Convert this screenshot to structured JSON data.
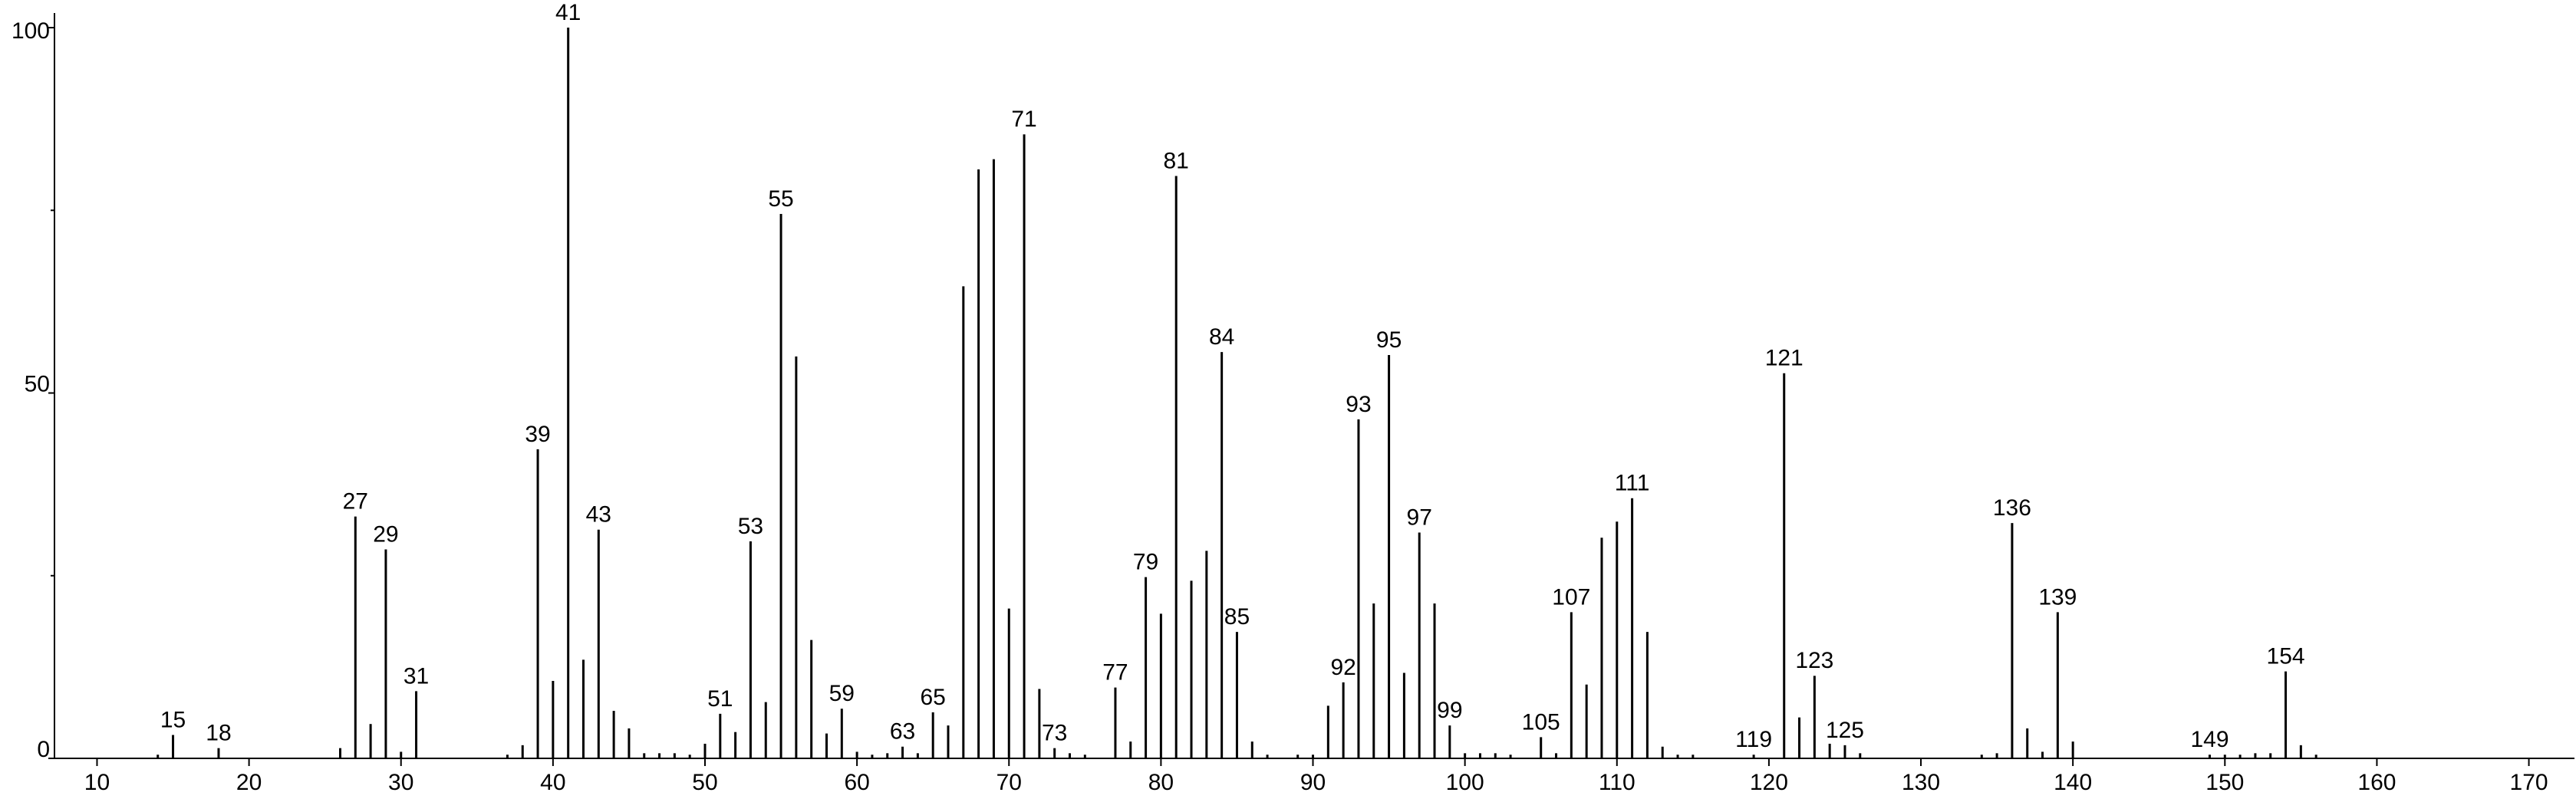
{
  "chart_data": {
    "type": "stick",
    "x": [
      14,
      15,
      18,
      26,
      27,
      28,
      29,
      30,
      31,
      37,
      38,
      39,
      40,
      41,
      42,
      43,
      44,
      45,
      46,
      47,
      48,
      49,
      50,
      51,
      52,
      53,
      54,
      55,
      56,
      57,
      58,
      59,
      60,
      61,
      62,
      63,
      64,
      65,
      66,
      67,
      68,
      69,
      70,
      71,
      72,
      73,
      74,
      75,
      77,
      78,
      79,
      80,
      81,
      82,
      83,
      84,
      85,
      86,
      87,
      89,
      90,
      91,
      92,
      93,
      94,
      95,
      96,
      97,
      98,
      99,
      100,
      101,
      102,
      103,
      105,
      106,
      107,
      108,
      109,
      110,
      111,
      112,
      113,
      114,
      115,
      119,
      121,
      122,
      123,
      124,
      125,
      126,
      134,
      135,
      136,
      137,
      138,
      139,
      140,
      149,
      150,
      151,
      152,
      153,
      154,
      155,
      156
    ],
    "values": [
      0.5,
      3.2,
      1.4,
      1.4,
      33.1,
      4.7,
      28.6,
      0.9,
      9.2,
      0.5,
      1.8,
      42.3,
      10.6,
      100,
      13.5,
      31.3,
      6.5,
      4.1,
      0.7,
      0.7,
      0.7,
      0.5,
      2.0,
      6.1,
      3.6,
      29.7,
      7.7,
      74.5,
      55.0,
      16.2,
      3.4,
      6.8,
      0.9,
      0.5,
      0.7,
      1.6,
      0.7,
      6.3,
      4.5,
      64.6,
      80.6,
      82.0,
      20.5,
      85.4,
      9.5,
      1.4,
      0.7,
      0.5,
      9.7,
      2.3,
      24.8,
      19.8,
      79.7,
      24.3,
      28.4,
      55.6,
      17.3,
      2.3,
      0.5,
      0.5,
      0.5,
      7.2,
      10.4,
      46.4,
      21.2,
      55.2,
      11.7,
      30.9,
      21.2,
      4.5,
      0.7,
      0.7,
      0.7,
      0.5,
      2.9,
      0.7,
      20.0,
      10.1,
      30.2,
      32.4,
      35.6,
      17.3,
      1.6,
      0.5,
      0.5,
      0.5,
      52.7,
      5.6,
      11.3,
      2.0,
      1.8,
      0.7,
      0.5,
      0.7,
      32.2,
      4.1,
      0.9,
      20.0,
      2.3,
      0.5,
      0.5,
      0.5,
      0.7,
      0.7,
      11.9,
      1.8,
      0.5
    ],
    "peak_labels": [
      15,
      18,
      27,
      29,
      31,
      39,
      41,
      43,
      51,
      53,
      55,
      59,
      63,
      65,
      71,
      73,
      77,
      79,
      81,
      84,
      85,
      92,
      93,
      95,
      97,
      99,
      105,
      107,
      111,
      119,
      121,
      123,
      125,
      136,
      139,
      149,
      154
    ],
    "color": "#000000",
    "xlim": [
      7.2,
      173
    ],
    "xticks": [
      10,
      20,
      30,
      40,
      50,
      60,
      70,
      80,
      90,
      100,
      110,
      120,
      130,
      140,
      150,
      160,
      170
    ],
    "ylim": [
      0,
      102
    ],
    "yticks": [
      0,
      50,
      100
    ],
    "yminor_ticks": [
      25,
      75
    ]
  }
}
